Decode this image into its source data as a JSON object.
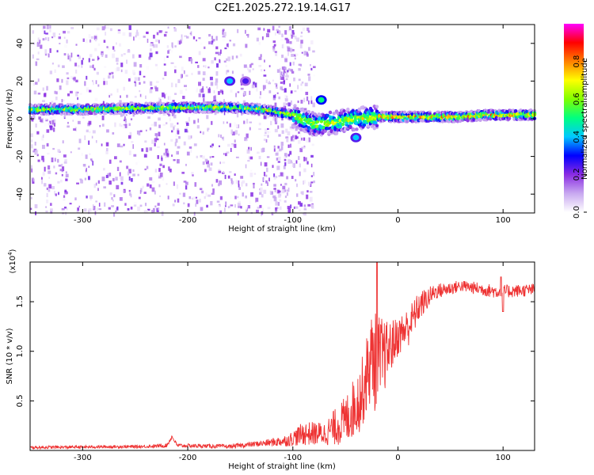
{
  "title": "C2E1.2025.272.19.14.G17",
  "chart_data": [
    {
      "type": "heatmap",
      "name": "spectrogram",
      "xlabel": "Height of straight line (km)",
      "ylabel": "Frequency (Hz)",
      "xlim": [
        -350,
        130
      ],
      "ylim": [
        -50,
        50
      ],
      "xticks": [
        -300,
        -200,
        -100,
        0,
        100
      ],
      "yticks": [
        -40,
        -20,
        0,
        20,
        40
      ],
      "xtick_labels": [
        "-300",
        "-200",
        "-100",
        "0",
        "100"
      ],
      "ytick_labels": [
        "-40",
        "-20",
        "0",
        "20",
        "40"
      ],
      "colorbar": {
        "label": "Normalized spectral amplitude",
        "range": [
          0.0,
          1.0
        ],
        "ticks": [
          0.0,
          0.2,
          0.4,
          0.6,
          0.8
        ],
        "tick_labels": [
          "0.0",
          "0.2",
          "0.4",
          "0.6",
          "0.8"
        ],
        "colormap": [
          "#ffffff",
          "#c8a8f0",
          "#8a2be2",
          "#0000ff",
          "#00c8ff",
          "#00ff80",
          "#80ff00",
          "#ffff00",
          "#ff8000",
          "#ff0000",
          "#ff00ff"
        ]
      },
      "ridge": [
        {
          "x": -350,
          "f": 5
        },
        {
          "x": -300,
          "f": 5
        },
        {
          "x": -250,
          "f": 5.5
        },
        {
          "x": -200,
          "f": 6
        },
        {
          "x": -160,
          "f": 6
        },
        {
          "x": -130,
          "f": 5
        },
        {
          "x": -100,
          "f": 2
        },
        {
          "x": -80,
          "f": -3
        },
        {
          "x": -60,
          "f": -2
        },
        {
          "x": -40,
          "f": 0
        },
        {
          "x": -20,
          "f": 1
        },
        {
          "x": 0,
          "f": 1
        },
        {
          "x": 60,
          "f": 1
        },
        {
          "x": 85,
          "f": 2
        },
        {
          "x": 130,
          "f": 2
        }
      ],
      "features": [
        {
          "x": -160,
          "f": 20,
          "amplitude": 0.4
        },
        {
          "x": -145,
          "f": 20,
          "amplitude": 0.25
        },
        {
          "x": -73,
          "f": 10,
          "amplitude": 0.5
        },
        {
          "x": -40,
          "f": -10,
          "amplitude": 0.4
        }
      ]
    },
    {
      "type": "line",
      "name": "snr",
      "xlabel": "Height of straight line (km)",
      "ylabel": "SNR (10 * v/v)",
      "y_multiplier_label": "(x10",
      "y_multiplier_exp": "4",
      "xlim": [
        -350,
        130
      ],
      "ylim": [
        0,
        1.9
      ],
      "xticks": [
        -300,
        -200,
        -100,
        0,
        100
      ],
      "yticks": [
        0.5,
        1.0,
        1.5
      ],
      "xtick_labels": [
        "-300",
        "-200",
        "-100",
        "0",
        "100"
      ],
      "ytick_labels": [
        "0.5",
        "1.0",
        "1.5"
      ],
      "color": "#ee3333",
      "envelope": [
        {
          "x": -350,
          "y": 0.03,
          "n": 0.015
        },
        {
          "x": -240,
          "y": 0.04,
          "n": 0.015
        },
        {
          "x": -220,
          "y": 0.05,
          "n": 0.02
        },
        {
          "x": -215,
          "y": 0.14,
          "n": 0.02
        },
        {
          "x": -210,
          "y": 0.05,
          "n": 0.02
        },
        {
          "x": -160,
          "y": 0.04,
          "n": 0.02
        },
        {
          "x": -130,
          "y": 0.07,
          "n": 0.03
        },
        {
          "x": -105,
          "y": 0.1,
          "n": 0.06
        },
        {
          "x": -90,
          "y": 0.17,
          "n": 0.12
        },
        {
          "x": -70,
          "y": 0.17,
          "n": 0.12
        },
        {
          "x": -50,
          "y": 0.3,
          "n": 0.25
        },
        {
          "x": -35,
          "y": 0.55,
          "n": 0.35
        },
        {
          "x": -25,
          "y": 0.95,
          "n": 0.45
        },
        {
          "x": -20,
          "y": 0.85,
          "n": 0.55
        },
        {
          "x": -10,
          "y": 1.0,
          "n": 0.3
        },
        {
          "x": 0,
          "y": 1.15,
          "n": 0.2
        },
        {
          "x": 10,
          "y": 1.25,
          "n": 0.2
        },
        {
          "x": 20,
          "y": 1.45,
          "n": 0.15
        },
        {
          "x": 35,
          "y": 1.6,
          "n": 0.08
        },
        {
          "x": 60,
          "y": 1.66,
          "n": 0.06
        },
        {
          "x": 95,
          "y": 1.6,
          "n": 0.07
        },
        {
          "x": 130,
          "y": 1.62,
          "n": 0.06
        }
      ],
      "peaks": [
        {
          "x": -20,
          "y": 1.9
        },
        {
          "x": 98,
          "y": 1.75
        },
        {
          "x": 100,
          "y": 1.4
        }
      ]
    }
  ]
}
